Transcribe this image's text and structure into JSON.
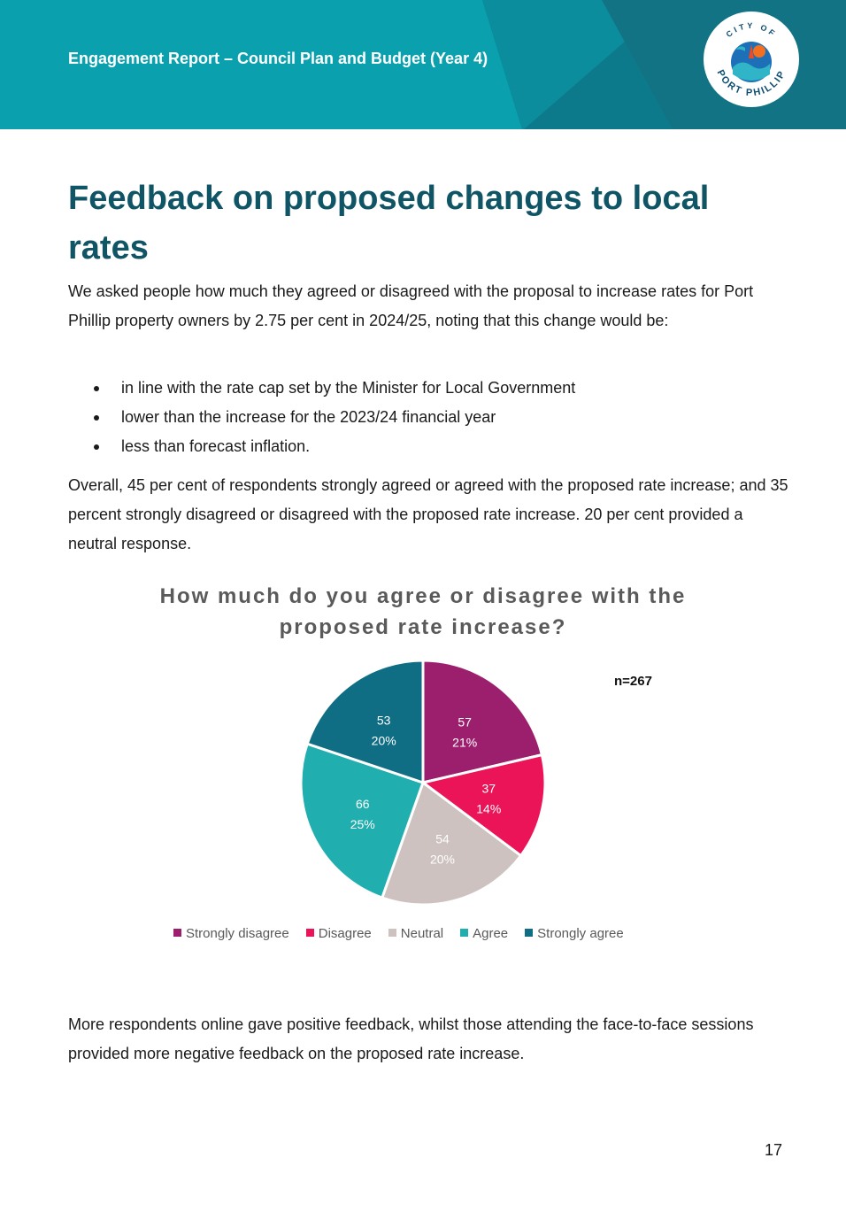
{
  "header": {
    "title": "Engagement Report – Council Plan and Budget (Year 4)",
    "logo_text_top": "CITY OF",
    "logo_text_bottom": "PORT PHILLIP",
    "colors": {
      "teal": "#0aa0ae",
      "dark_teal": "#0d7a8c"
    }
  },
  "page": {
    "title": "Feedback on proposed changes to local rates",
    "intro": "We asked people how much they agreed or disagreed with the proposal to increase rates for Port Phillip property owners by 2.75 per cent in 2024/25, noting that this change would be:",
    "bullets": [
      "in line with the rate cap set by the Minister for Local Government",
      "lower than the increase for the 2023/24 financial year",
      "less than forecast inflation."
    ],
    "summary": "Overall, 45 per cent of respondents strongly agreed or agreed with the proposed rate increase; and 35 percent strongly disagreed or disagreed with the proposed rate increase. 20 per cent provided a neutral response.",
    "closing": "More respondents online gave positive feedback, whilst those attending the face-to-face sessions provided more negative feedback on the proposed rate increase.",
    "page_number": "17"
  },
  "chart_data": {
    "type": "pie",
    "title": "How much do you agree or disagree with the proposed rate increase?",
    "annotation": "n=267",
    "categories": [
      "Strongly disagree",
      "Disagree",
      "Neutral",
      "Agree",
      "Strongly agree"
    ],
    "values": [
      57,
      37,
      54,
      66,
      53
    ],
    "percent_labels": [
      "21%",
      "14%",
      "20%",
      "25%",
      "20%"
    ],
    "colors": [
      "#9c1f6e",
      "#ec1459",
      "#cdc2c0",
      "#21aeae",
      "#0f6d84"
    ],
    "legend": "bottom"
  }
}
